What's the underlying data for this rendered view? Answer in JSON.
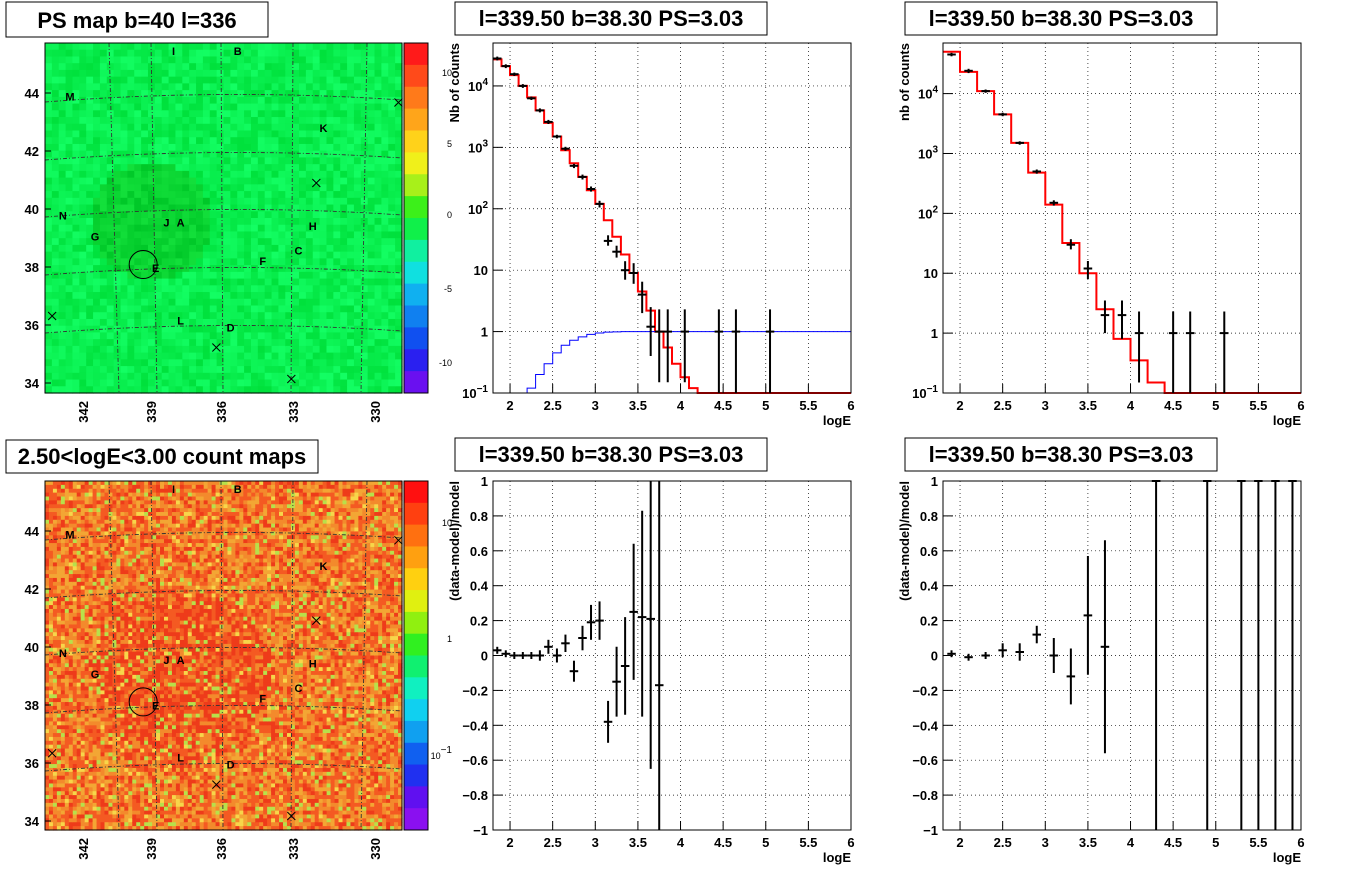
{
  "chart_data": [
    {
      "type": "heatmap",
      "title": "PS map b=40 l=336",
      "x_ticks": [
        "342",
        "339",
        "336",
        "333",
        "330"
      ],
      "y_ticks": [
        "44",
        "42",
        "40",
        "38",
        "36",
        "34"
      ],
      "xlim": [
        344,
        328.5
      ],
      "ylim": [
        33.8,
        45.7
      ],
      "colorbar": {
        "ticks": [
          "10",
          "5",
          "0",
          "-5",
          "-10"
        ],
        "range": [
          -12.5,
          12.5
        ]
      },
      "base_color": "#10f04a",
      "source_labels": [
        "I",
        "B",
        "M",
        "K",
        "N",
        "H",
        "J",
        "A",
        "G",
        "C",
        "F",
        "E",
        "L",
        "D"
      ],
      "circle_label": "E"
    },
    {
      "type": "line",
      "title": "l=339.50 b=38.30 PS=3.03",
      "xlabel": "logE",
      "ylabel": "Nb of counts",
      "xlim": [
        1.8,
        6
      ],
      "ylim": [
        0.1,
        50000
      ],
      "yscale": "log",
      "x_ticks": [
        "2",
        "2.5",
        "3",
        "3.5",
        "4",
        "4.5",
        "5",
        "5.5",
        "6"
      ],
      "y_ticks": [
        "10^4",
        "10^3",
        "10^2",
        "10",
        "1",
        "10^-1"
      ],
      "grid": true,
      "series": [
        {
          "color": "#ff0000",
          "style": "step",
          "x": [
            1.8,
            1.9,
            2.0,
            2.1,
            2.2,
            2.3,
            2.4,
            2.5,
            2.6,
            2.7,
            2.8,
            2.9,
            3.0,
            3.1,
            3.2,
            3.3,
            3.4,
            3.5,
            3.6,
            3.7,
            3.8,
            3.9,
            4.0,
            4.1,
            4.2,
            4.3,
            4.4,
            4.5,
            6.0
          ],
          "y": [
            27000,
            21000,
            15000,
            10000,
            6500,
            4000,
            2500,
            1500,
            900,
            550,
            330,
            200,
            120,
            65,
            35,
            18,
            9,
            4.5,
            2.2,
            1.0,
            0.55,
            0.3,
            0.18,
            0.12,
            0.1,
            0.1,
            0.1,
            0.1,
            0.1
          ]
        },
        {
          "color": "#0000ff",
          "style": "step",
          "x": [
            1.8,
            2.1,
            2.2,
            2.3,
            2.4,
            2.5,
            2.6,
            2.7,
            2.8,
            2.9,
            3.0,
            3.1,
            3.2,
            3.3,
            3.4,
            3.5,
            3.6,
            6.0
          ],
          "y": [
            0.1,
            0.1,
            0.12,
            0.2,
            0.3,
            0.45,
            0.6,
            0.72,
            0.82,
            0.9,
            0.95,
            0.98,
            0.99,
            1.0,
            1.0,
            1.0,
            1.0,
            1.0
          ]
        }
      ],
      "points": [
        {
          "x": 1.85,
          "y": 28000,
          "lo": 26000,
          "hi": 30000
        },
        {
          "x": 1.95,
          "y": 21000,
          "lo": 19500,
          "hi": 22500
        },
        {
          "x": 2.05,
          "y": 15500,
          "lo": 14500,
          "hi": 16500
        },
        {
          "x": 2.15,
          "y": 10000,
          "lo": 9300,
          "hi": 10700
        },
        {
          "x": 2.25,
          "y": 6300,
          "lo": 5900,
          "hi": 6700
        },
        {
          "x": 2.35,
          "y": 4000,
          "lo": 3700,
          "hi": 4300
        },
        {
          "x": 2.45,
          "y": 2600,
          "lo": 2400,
          "hi": 2800
        },
        {
          "x": 2.55,
          "y": 1500,
          "lo": 1400,
          "hi": 1600
        },
        {
          "x": 2.65,
          "y": 950,
          "lo": 880,
          "hi": 1020
        },
        {
          "x": 2.75,
          "y": 500,
          "lo": 460,
          "hi": 540
        },
        {
          "x": 2.85,
          "y": 330,
          "lo": 300,
          "hi": 360
        },
        {
          "x": 2.95,
          "y": 210,
          "lo": 190,
          "hi": 230
        },
        {
          "x": 3.05,
          "y": 120,
          "lo": 105,
          "hi": 135
        },
        {
          "x": 3.15,
          "y": 30,
          "lo": 25,
          "hi": 37
        },
        {
          "x": 3.25,
          "y": 20,
          "lo": 16,
          "hi": 25
        },
        {
          "x": 3.35,
          "y": 10,
          "lo": 7,
          "hi": 14
        },
        {
          "x": 3.45,
          "y": 9,
          "lo": 6,
          "hi": 13
        },
        {
          "x": 3.55,
          "y": 4,
          "lo": 2,
          "hi": 6.5
        },
        {
          "x": 3.65,
          "y": 1.2,
          "lo": 0.4,
          "hi": 2.5
        },
        {
          "x": 3.75,
          "y": 1,
          "lo": 0.15,
          "hi": 2.3
        },
        {
          "x": 3.85,
          "y": 1,
          "lo": 0.15,
          "hi": 2.3
        },
        {
          "x": 4.05,
          "y": 1,
          "lo": 0.15,
          "hi": 2.3
        },
        {
          "x": 4.45,
          "y": 1,
          "lo": 0.1,
          "hi": 2.3
        },
        {
          "x": 4.65,
          "y": 1,
          "lo": 0.1,
          "hi": 2.3
        },
        {
          "x": 5.05,
          "y": 1,
          "lo": 0.1,
          "hi": 2.3
        }
      ]
    },
    {
      "type": "line",
      "title": "l=339.50 b=38.30 PS=3.03",
      "xlabel": "logE",
      "ylabel": "nb of counts",
      "xlim": [
        1.8,
        6
      ],
      "ylim": [
        0.1,
        70000
      ],
      "yscale": "log",
      "x_ticks": [
        "2",
        "2.5",
        "3",
        "3.5",
        "4",
        "4.5",
        "5",
        "5.5",
        "6"
      ],
      "y_ticks": [
        "10^4",
        "10^3",
        "10^2",
        "10",
        "1",
        "10^-1"
      ],
      "grid": true,
      "series": [
        {
          "color": "#ff0000",
          "style": "step",
          "x": [
            1.8,
            2.0,
            2.2,
            2.4,
            2.6,
            2.8,
            3.0,
            3.2,
            3.4,
            3.6,
            3.8,
            4.0,
            4.2,
            4.4,
            6.0
          ],
          "y": [
            50000,
            23000,
            11000,
            4500,
            1500,
            480,
            140,
            32,
            10,
            2.5,
            0.8,
            0.35,
            0.15,
            0.1,
            0.1
          ]
        }
      ],
      "points": [
        {
          "x": 1.9,
          "y": 45000,
          "lo": 42000,
          "hi": 48000
        },
        {
          "x": 2.1,
          "y": 24000,
          "lo": 22000,
          "hi": 26000
        },
        {
          "x": 2.3,
          "y": 11000,
          "lo": 10300,
          "hi": 11700
        },
        {
          "x": 2.5,
          "y": 4500,
          "lo": 4200,
          "hi": 4800
        },
        {
          "x": 2.7,
          "y": 1500,
          "lo": 1400,
          "hi": 1600
        },
        {
          "x": 2.9,
          "y": 500,
          "lo": 460,
          "hi": 540
        },
        {
          "x": 3.1,
          "y": 150,
          "lo": 135,
          "hi": 165
        },
        {
          "x": 3.3,
          "y": 30,
          "lo": 25,
          "hi": 37
        },
        {
          "x": 3.5,
          "y": 12,
          "lo": 8,
          "hi": 16
        },
        {
          "x": 3.7,
          "y": 2,
          "lo": 1,
          "hi": 3.5
        },
        {
          "x": 3.9,
          "y": 2,
          "lo": 0.8,
          "hi": 3.5
        },
        {
          "x": 4.1,
          "y": 1,
          "lo": 0.15,
          "hi": 2.3
        },
        {
          "x": 4.5,
          "y": 1,
          "lo": 0.1,
          "hi": 2.3
        },
        {
          "x": 4.7,
          "y": 1,
          "lo": 0.1,
          "hi": 2.3
        },
        {
          "x": 5.1,
          "y": 1,
          "lo": 0.1,
          "hi": 2.3
        }
      ]
    },
    {
      "type": "heatmap",
      "title": "2.50<logE<3.00 count maps",
      "x_ticks": [
        "342",
        "339",
        "336",
        "333",
        "330"
      ],
      "y_ticks": [
        "44",
        "42",
        "40",
        "38",
        "36",
        "34"
      ],
      "xlim": [
        344,
        328.5
      ],
      "ylim": [
        33.8,
        45.7
      ],
      "colorbar": {
        "ticks": [
          "10",
          "1",
          "10^-1"
        ],
        "scale": "log"
      },
      "base_color": "#f28a2a",
      "source_labels": [
        "I",
        "B",
        "M",
        "K",
        "N",
        "H",
        "J",
        "A",
        "G",
        "C",
        "F",
        "E",
        "L",
        "D"
      ],
      "circle_label": "E"
    },
    {
      "type": "scatter",
      "title": "l=339.50 b=38.30 PS=3.03",
      "xlabel": "logE",
      "ylabel": "(data-model)/model",
      "xlim": [
        1.8,
        6
      ],
      "ylim": [
        -1,
        1
      ],
      "x_ticks": [
        "2",
        "2.5",
        "3",
        "3.5",
        "4",
        "4.5",
        "5",
        "5.5",
        "6"
      ],
      "y_ticks": [
        "1",
        "0.8",
        "0.6",
        "0.4",
        "0.2",
        "0",
        "−0.2",
        "−0.4",
        "−0.6",
        "−0.8",
        "−1"
      ],
      "grid": true,
      "points": [
        {
          "x": 1.85,
          "y": 0.03,
          "lo": 0.01,
          "hi": 0.05
        },
        {
          "x": 1.95,
          "y": 0.01,
          "lo": -0.01,
          "hi": 0.03
        },
        {
          "x": 2.05,
          "y": 0.0,
          "lo": -0.02,
          "hi": 0.02
        },
        {
          "x": 2.15,
          "y": 0.0,
          "lo": -0.02,
          "hi": 0.02
        },
        {
          "x": 2.25,
          "y": 0.0,
          "lo": -0.02,
          "hi": 0.02
        },
        {
          "x": 2.35,
          "y": 0.0,
          "lo": -0.03,
          "hi": 0.03
        },
        {
          "x": 2.45,
          "y": 0.05,
          "lo": 0.01,
          "hi": 0.09
        },
        {
          "x": 2.55,
          "y": 0.0,
          "lo": -0.04,
          "hi": 0.04
        },
        {
          "x": 2.65,
          "y": 0.07,
          "lo": 0.02,
          "hi": 0.12
        },
        {
          "x": 2.75,
          "y": -0.09,
          "lo": -0.15,
          "hi": -0.03
        },
        {
          "x": 2.85,
          "y": 0.1,
          "lo": 0.03,
          "hi": 0.17
        },
        {
          "x": 2.95,
          "y": 0.19,
          "lo": 0.09,
          "hi": 0.29
        },
        {
          "x": 3.05,
          "y": 0.2,
          "lo": 0.09,
          "hi": 0.31
        },
        {
          "x": 3.15,
          "y": -0.38,
          "lo": -0.5,
          "hi": -0.26
        },
        {
          "x": 3.25,
          "y": -0.15,
          "lo": -0.35,
          "hi": 0.05
        },
        {
          "x": 3.35,
          "y": -0.06,
          "lo": -0.34,
          "hi": 0.22
        },
        {
          "x": 3.45,
          "y": 0.25,
          "lo": -0.14,
          "hi": 0.64
        },
        {
          "x": 3.55,
          "y": 0.22,
          "lo": -0.35,
          "hi": 0.83
        },
        {
          "x": 3.65,
          "y": 0.21,
          "lo": -0.65,
          "hi": 1.0
        },
        {
          "x": 3.75,
          "y": -0.17,
          "lo": -1.0,
          "hi": 1.0
        }
      ]
    },
    {
      "type": "scatter",
      "title": "l=339.50 b=38.30 PS=3.03",
      "xlabel": "logE",
      "ylabel": "(data-model)/model",
      "xlim": [
        1.8,
        6
      ],
      "ylim": [
        -1,
        1
      ],
      "x_ticks": [
        "2",
        "2.5",
        "3",
        "3.5",
        "4",
        "4.5",
        "5",
        "5.5",
        "6"
      ],
      "y_ticks": [
        "1",
        "0.8",
        "0.6",
        "0.4",
        "0.2",
        "0",
        "−0.2",
        "−0.4",
        "−0.6",
        "−0.8",
        "−1"
      ],
      "grid": true,
      "points": [
        {
          "x": 1.9,
          "y": 0.01,
          "lo": -0.01,
          "hi": 0.03
        },
        {
          "x": 2.1,
          "y": -0.01,
          "lo": -0.03,
          "hi": 0.01
        },
        {
          "x": 2.3,
          "y": 0.0,
          "lo": -0.02,
          "hi": 0.02
        },
        {
          "x": 2.5,
          "y": 0.03,
          "lo": -0.01,
          "hi": 0.07
        },
        {
          "x": 2.7,
          "y": 0.02,
          "lo": -0.03,
          "hi": 0.07
        },
        {
          "x": 2.9,
          "y": 0.12,
          "lo": 0.07,
          "hi": 0.17
        },
        {
          "x": 3.1,
          "y": 0.0,
          "lo": -0.1,
          "hi": 0.1
        },
        {
          "x": 3.3,
          "y": -0.12,
          "lo": -0.28,
          "hi": 0.04
        },
        {
          "x": 3.5,
          "y": 0.23,
          "lo": -0.11,
          "hi": 0.57
        },
        {
          "x": 3.7,
          "y": 0.05,
          "lo": -0.56,
          "hi": 0.66
        },
        {
          "x": 4.3,
          "y": 1,
          "lo": -1,
          "hi": 1
        },
        {
          "x": 4.9,
          "y": 1,
          "lo": -1,
          "hi": 1
        },
        {
          "x": 5.3,
          "y": 1,
          "lo": -1,
          "hi": 1
        },
        {
          "x": 5.5,
          "y": 1,
          "lo": -1,
          "hi": 1
        },
        {
          "x": 5.7,
          "y": 1,
          "lo": -1,
          "hi": 1
        },
        {
          "x": 5.9,
          "y": 1,
          "lo": -1,
          "hi": 1
        }
      ]
    }
  ]
}
